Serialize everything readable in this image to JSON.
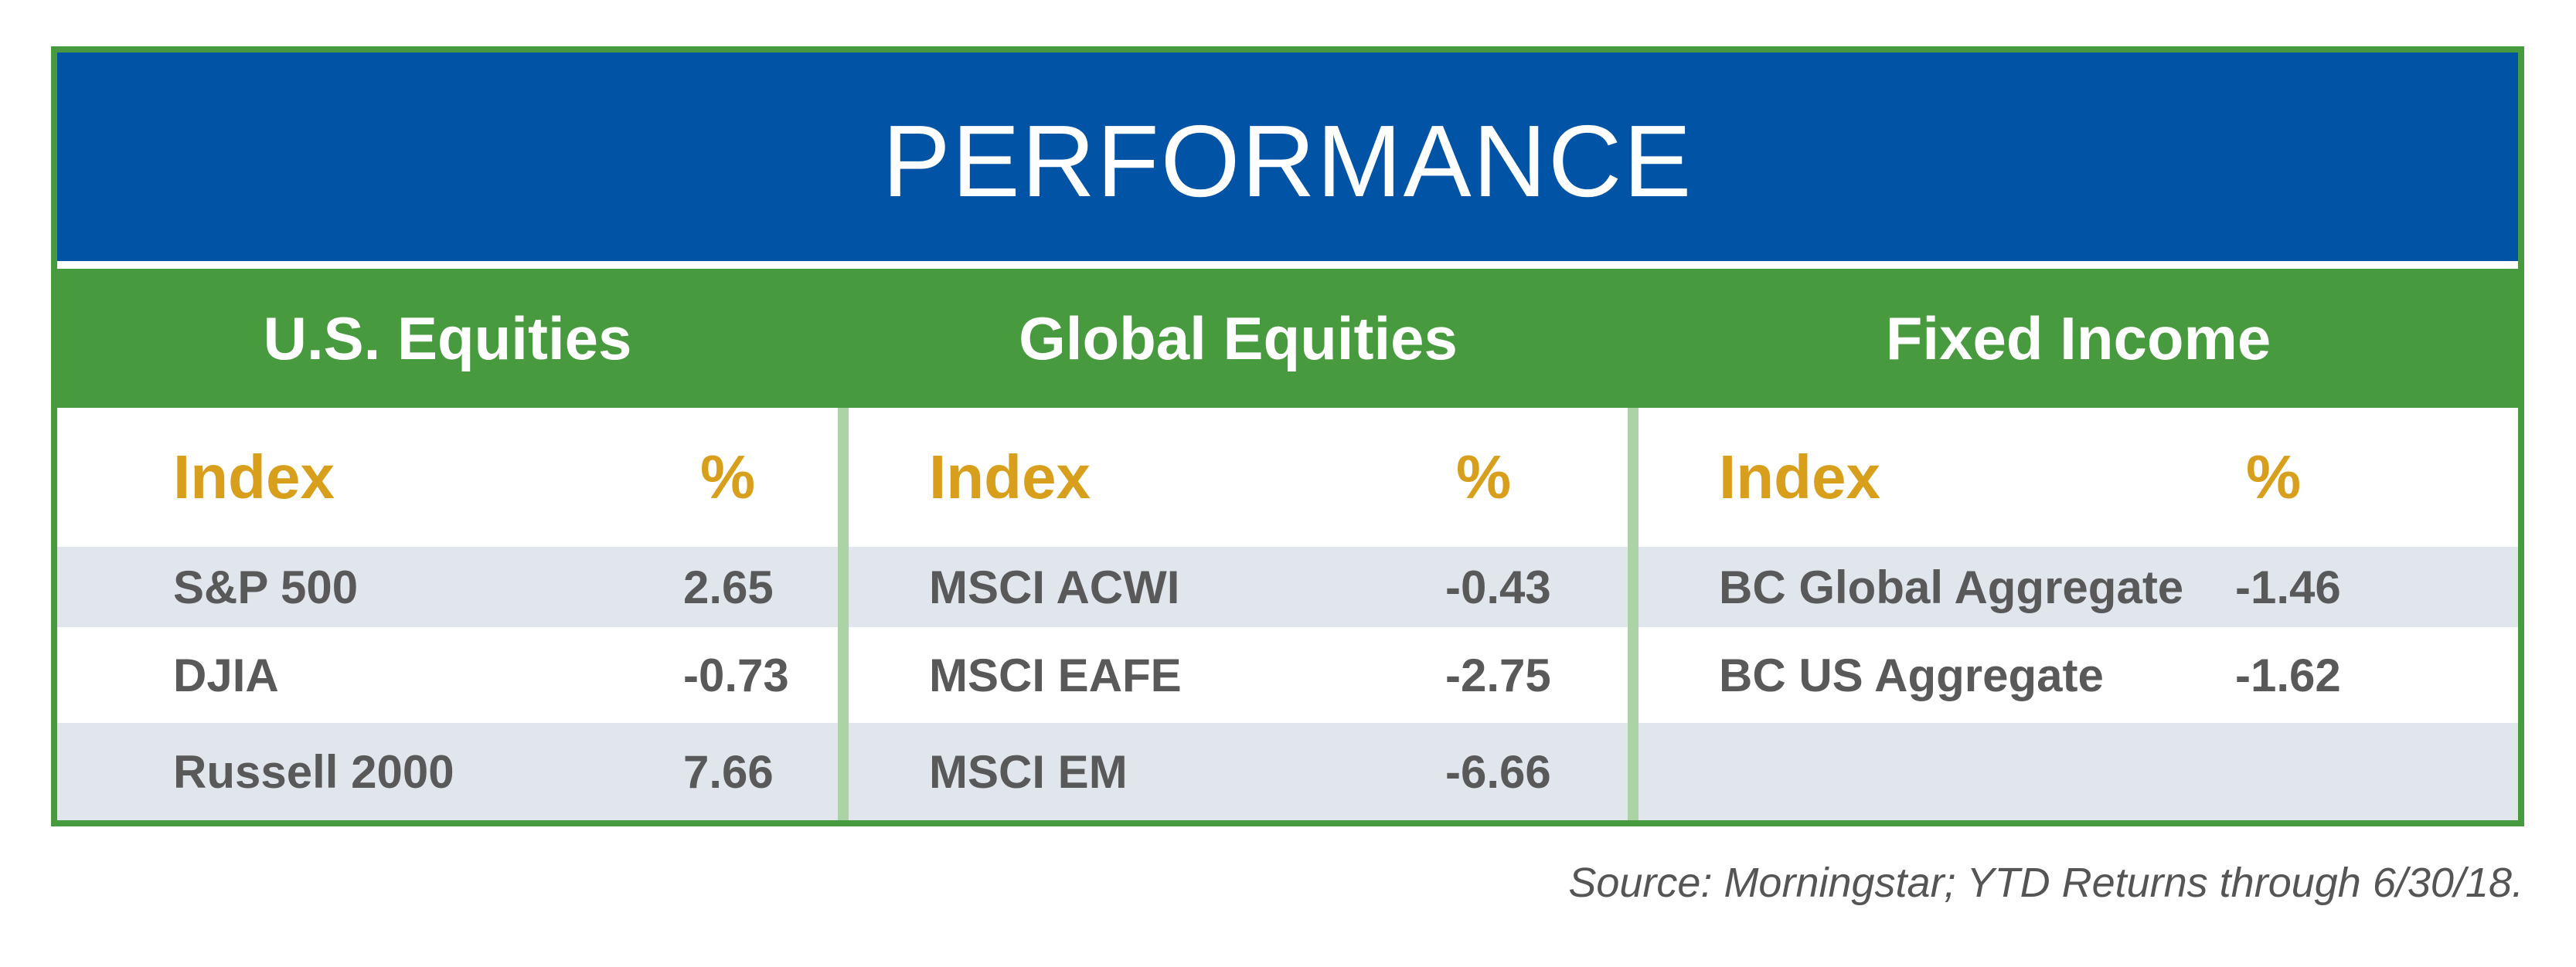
{
  "title": "PERFORMANCE",
  "sections": [
    {
      "heading": "U.S. Equities",
      "col_index": "Index",
      "col_pct": "%",
      "rows": [
        {
          "index": "S&P 500",
          "pct": "2.65"
        },
        {
          "index": "DJIA",
          "pct": "-0.73"
        },
        {
          "index": "Russell 2000",
          "pct": "7.66"
        }
      ]
    },
    {
      "heading": "Global Equities",
      "col_index": "Index",
      "col_pct": "%",
      "rows": [
        {
          "index": "MSCI ACWI",
          "pct": "-0.43"
        },
        {
          "index": "MSCI EAFE",
          "pct": "-2.75"
        },
        {
          "index": "MSCI EM",
          "pct": "-6.66"
        }
      ]
    },
    {
      "heading": "Fixed Income",
      "col_index": "Index",
      "col_pct": "%",
      "rows": [
        {
          "index": "BC Global Aggregate",
          "pct": "-1.46"
        },
        {
          "index": "BC US Aggregate",
          "pct": "-1.62"
        },
        {
          "index": "",
          "pct": ""
        }
      ]
    }
  ],
  "source": "Source: Morningstar; YTD Returns through 6/30/18.",
  "colors": {
    "title_bg": "#0154a5",
    "header_bg": "#479a3e",
    "column_header_text": "#d79f1b",
    "row_shade": "#e0e6ec",
    "body_text": "#595959",
    "separator": "#acd3a6"
  }
}
